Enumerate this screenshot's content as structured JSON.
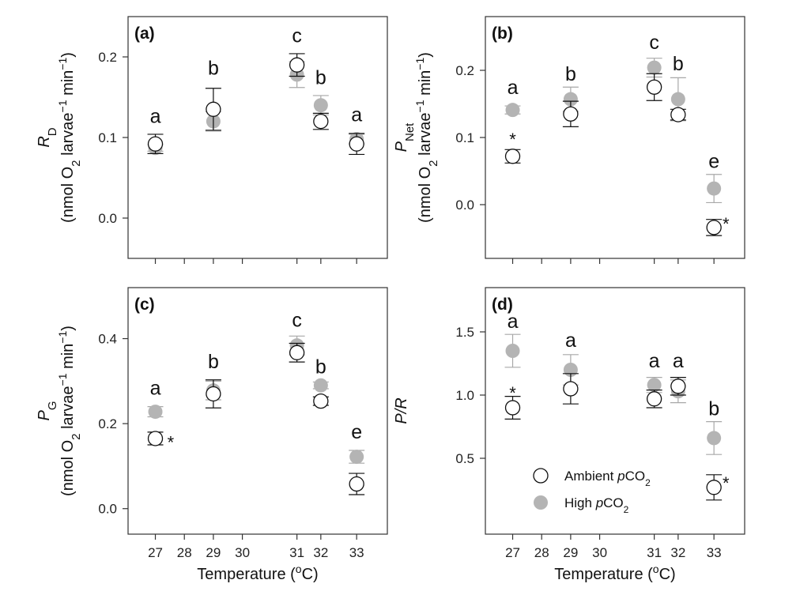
{
  "colors": {
    "ambient_marker": "#ffffff",
    "ambient_stroke": "#111111",
    "high_marker": "#b4b4b4",
    "high_err": "#a8a8a8",
    "axis": "#333333"
  },
  "legend": {
    "ambient_prefix": "Ambient ",
    "ambient_italic": "p",
    "ambient_suffix": "CO",
    "ambient_sub": "2",
    "high_prefix": "High ",
    "high_italic": "p",
    "high_suffix": "CO",
    "high_sub": "2",
    "placement": "lower-left inside panel (d)"
  },
  "xlabel": {
    "prefix": "Temperature (",
    "sup": "o",
    "suffix": "C)"
  },
  "x_ticks": [
    "27",
    "28",
    "29",
    "30",
    "31",
    "32",
    "33"
  ],
  "chart_data": [
    {
      "type": "scatter",
      "panel": "(a)",
      "ylabel_main": "R",
      "ylabel_sub": "D",
      "ylabel_unit": {
        "open": "(nmol O",
        "sub": "2",
        "mid": " larvae",
        "sup1": "−1",
        "end": " min",
        "sup2": "−1",
        "close": ")"
      },
      "xlim": [
        26.2,
        33.8
      ],
      "ylim": [
        -0.05,
        0.25
      ],
      "yticks": [
        "0.0",
        "0.1",
        "0.2"
      ],
      "ytick_values": [
        0.0,
        0.1,
        0.2
      ],
      "series": [
        {
          "name": "Ambient pCO2",
          "x": [
            27,
            28.7,
            31.15,
            31.85,
            32.9
          ],
          "y": [
            0.092,
            0.135,
            0.19,
            0.12,
            0.092
          ],
          "err": [
            0.012,
            0.026,
            0.014,
            0.01,
            0.013
          ]
        },
        {
          "name": "High pCO2",
          "x": [
            27,
            28.7,
            31.15,
            31.85,
            32.9
          ],
          "y": [
            0.087,
            0.12,
            0.178,
            0.14,
            0.098
          ],
          "err": [
            0.004,
            0.012,
            0.016,
            0.012,
            0.006
          ]
        }
      ],
      "letters": [
        {
          "x": 27,
          "y": 0.118,
          "text": "a"
        },
        {
          "x": 28.7,
          "y": 0.178,
          "text": "b"
        },
        {
          "x": 31.15,
          "y": 0.218,
          "text": "c"
        },
        {
          "x": 31.85,
          "y": 0.166,
          "text": "b"
        },
        {
          "x": 32.9,
          "y": 0.12,
          "text": "a"
        }
      ],
      "stars": []
    },
    {
      "type": "scatter",
      "panel": "(b)",
      "ylabel_main": "P",
      "ylabel_sub": "Net",
      "ylabel_unit": {
        "open": "(nmol O",
        "sub": "2",
        "mid": " larvae",
        "sup1": "−1",
        "end": " min",
        "sup2": "−1",
        "close": ")"
      },
      "xlim": [
        26.2,
        33.8
      ],
      "ylim": [
        -0.08,
        0.28
      ],
      "yticks": [
        "0.0",
        "0.1",
        "0.2"
      ],
      "ytick_values": [
        0.0,
        0.1,
        0.2
      ],
      "series": [
        {
          "name": "Ambient pCO2",
          "x": [
            27,
            28.7,
            31.15,
            31.85,
            32.9
          ],
          "y": [
            0.072,
            0.135,
            0.175,
            0.134,
            -0.034
          ],
          "err": [
            0.01,
            0.019,
            0.02,
            0.008,
            0.012
          ]
        },
        {
          "name": "High pCO2",
          "x": [
            27,
            28.7,
            31.15,
            31.85,
            32.9
          ],
          "y": [
            0.141,
            0.157,
            0.204,
            0.157,
            0.024
          ],
          "err": [
            0.006,
            0.018,
            0.014,
            0.032,
            0.021
          ]
        }
      ],
      "letters": [
        {
          "x": 27,
          "y": 0.165,
          "text": "a"
        },
        {
          "x": 28.7,
          "y": 0.185,
          "text": "b"
        },
        {
          "x": 31.15,
          "y": 0.232,
          "text": "c"
        },
        {
          "x": 31.85,
          "y": 0.2,
          "text": "b"
        },
        {
          "x": 32.9,
          "y": 0.055,
          "text": "e"
        }
      ],
      "stars": [
        {
          "x": 27,
          "y": 0.1,
          "text": "*"
        },
        {
          "x": 33.25,
          "y": -0.026,
          "text": "*"
        }
      ]
    },
    {
      "type": "scatter",
      "panel": "(c)",
      "ylabel_main": "P",
      "ylabel_sub": "G",
      "ylabel_unit": {
        "open": "(nmol O",
        "sub": "2",
        "mid": " larvae",
        "sup1": "−1",
        "end": " min",
        "sup2": "−1",
        "close": ")"
      },
      "xlim": [
        26.2,
        33.8
      ],
      "ylim": [
        -0.06,
        0.52
      ],
      "yticks": [
        "0.0",
        "0.2",
        "0.4"
      ],
      "ytick_values": [
        0.0,
        0.2,
        0.4
      ],
      "series": [
        {
          "name": "Ambient pCO2",
          "x": [
            27,
            28.7,
            31.15,
            31.85,
            32.9
          ],
          "y": [
            0.165,
            0.27,
            0.367,
            0.253,
            0.058
          ],
          "err": [
            0.015,
            0.033,
            0.022,
            0.01,
            0.025
          ]
        },
        {
          "name": "High pCO2",
          "x": [
            27,
            28.7,
            31.15,
            31.85,
            32.9
          ],
          "y": [
            0.228,
            0.278,
            0.384,
            0.29,
            0.122
          ],
          "err": [
            0.012,
            0.022,
            0.022,
            0.008,
            0.015
          ]
        }
      ],
      "letters": [
        {
          "x": 27,
          "y": 0.268,
          "text": "a"
        },
        {
          "x": 28.7,
          "y": 0.33,
          "text": "b"
        },
        {
          "x": 31.15,
          "y": 0.428,
          "text": "c"
        },
        {
          "x": 31.85,
          "y": 0.318,
          "text": "b"
        },
        {
          "x": 32.9,
          "y": 0.165,
          "text": "e"
        }
      ],
      "stars": [
        {
          "x": 27.45,
          "y": 0.16,
          "text": "*"
        }
      ]
    },
    {
      "type": "scatter",
      "panel": "(d)",
      "ylabel_main": "P/R",
      "ylabel_sub": "",
      "ylabel_unit": null,
      "xlim": [
        26.2,
        33.8
      ],
      "ylim": [
        -0.1,
        1.85
      ],
      "yticks": [
        "0.5",
        "1.0",
        "1.5"
      ],
      "ytick_values": [
        0.5,
        1.0,
        1.5
      ],
      "series": [
        {
          "name": "Ambient pCO2",
          "x": [
            27,
            28.7,
            31.15,
            31.85,
            32.9
          ],
          "y": [
            0.9,
            1.05,
            0.97,
            1.07,
            0.27
          ],
          "err": [
            0.09,
            0.12,
            0.07,
            0.07,
            0.1
          ]
        },
        {
          "name": "High pCO2",
          "x": [
            27,
            28.7,
            31.15,
            31.85,
            32.9
          ],
          "y": [
            1.35,
            1.2,
            1.08,
            1.03,
            0.66
          ],
          "err": [
            0.13,
            0.12,
            0.06,
            0.09,
            0.13
          ]
        }
      ],
      "letters": [
        {
          "x": 27,
          "y": 1.53,
          "text": "a"
        },
        {
          "x": 28.7,
          "y": 1.38,
          "text": "a"
        },
        {
          "x": 31.15,
          "y": 1.22,
          "text": "a"
        },
        {
          "x": 31.85,
          "y": 1.22,
          "text": "a"
        },
        {
          "x": 32.9,
          "y": 0.84,
          "text": "b"
        }
      ],
      "stars": [
        {
          "x": 27,
          "y": 1.03,
          "text": "*"
        },
        {
          "x": 33.25,
          "y": 0.32,
          "text": "*"
        }
      ]
    }
  ]
}
